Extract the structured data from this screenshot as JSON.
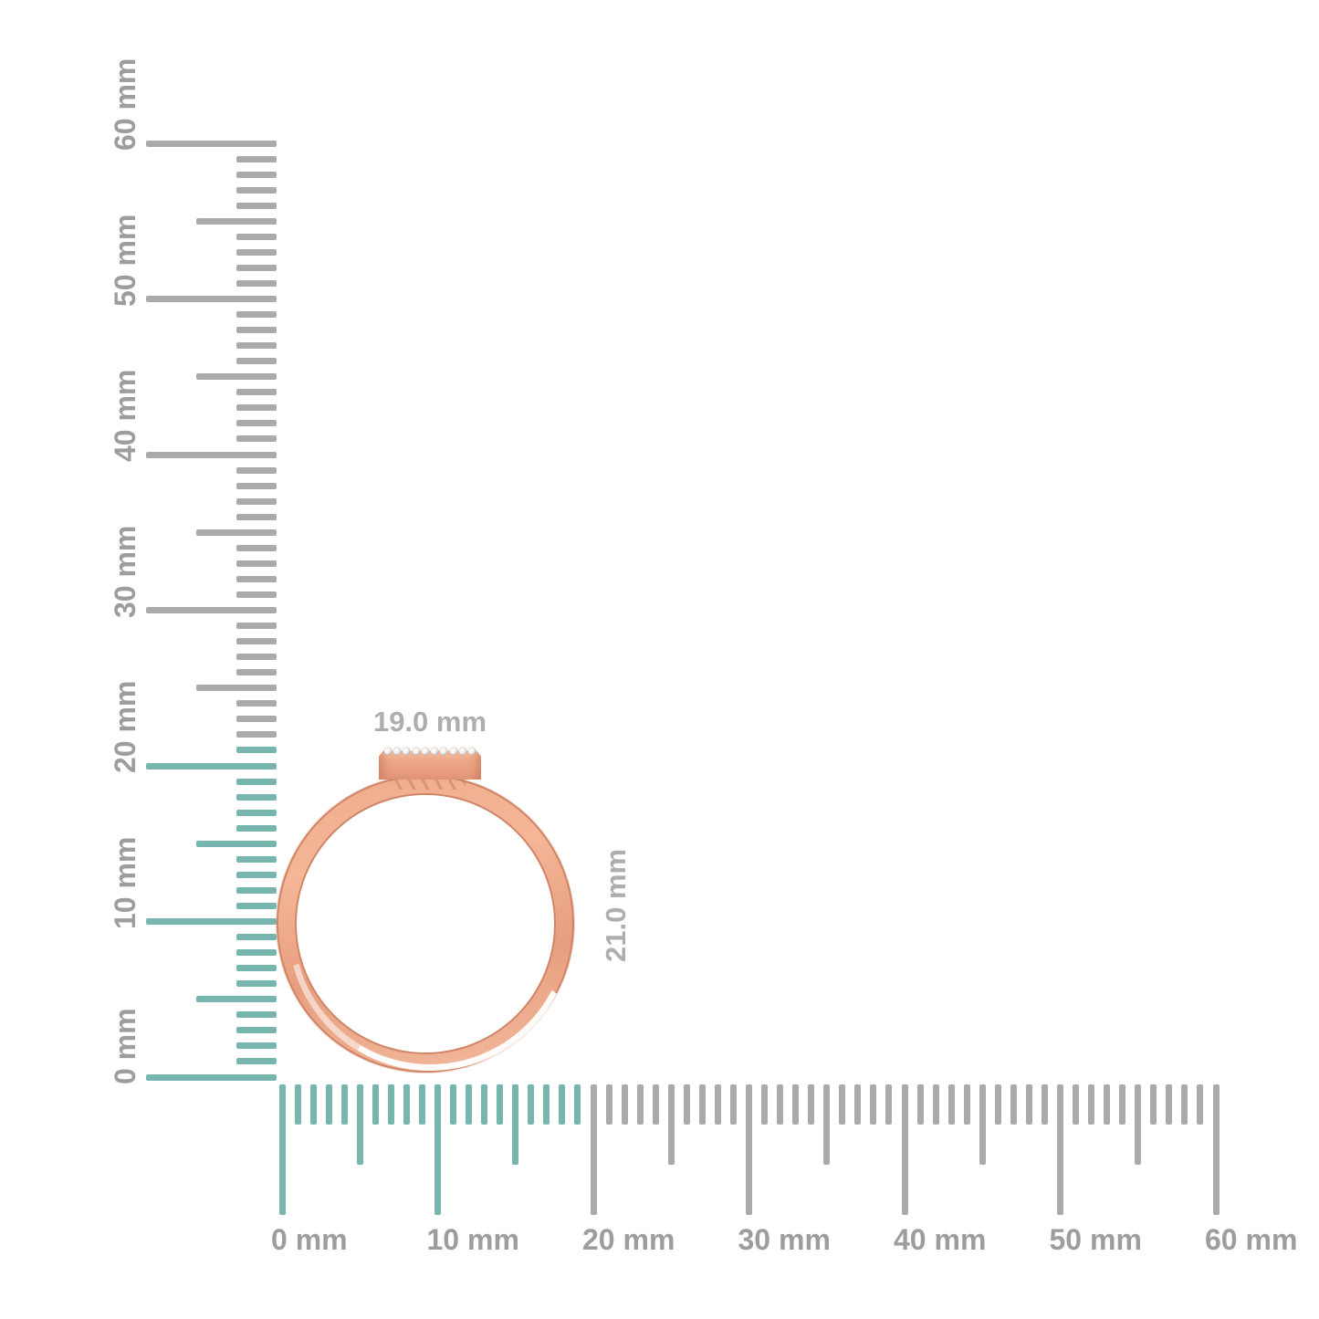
{
  "scene": {
    "description": "Rose gold ring with a diamond-set rectangular top bar shown to scale against millimeter rulers"
  },
  "colors": {
    "highlight_teal": "#77b6af",
    "ruler_gray": "#aaaaaa",
    "label_gray": "#9d9d9d",
    "dimension_label_gray": "#aeaeae",
    "rose_gold_mid": "#eda98a",
    "rose_gold_light": "#f6c0a2",
    "rose_gold_edge": "#d08566",
    "diamond_white": "#f0f1f3"
  },
  "vertical_ruler": {
    "unit": "mm",
    "min_mm": 0,
    "max_mm": 60,
    "major_step_mm": 10,
    "medium_step_mm": 5,
    "minor_step_mm": 1,
    "highlight_from_mm": 0,
    "highlight_to_mm": 21,
    "major_labels": [
      "0 mm",
      "10 mm",
      "20 mm",
      "30 mm",
      "40 mm",
      "50 mm",
      "60 mm"
    ]
  },
  "horizontal_ruler": {
    "unit": "mm",
    "min_mm": 0,
    "max_mm": 60,
    "major_step_mm": 10,
    "medium_step_mm": 5,
    "minor_step_mm": 1,
    "highlight_from_mm": 0,
    "highlight_to_mm": 19,
    "major_labels": [
      "0 mm",
      "10 mm",
      "20 mm",
      "30 mm",
      "40 mm",
      "50 mm",
      "60 mm"
    ]
  },
  "measurements": {
    "width_label": "19.0 mm",
    "height_label": "21.0 mm"
  },
  "ring": {
    "name": "rose-gold-ring-with-diamond-bar",
    "diamond_count": 10
  }
}
